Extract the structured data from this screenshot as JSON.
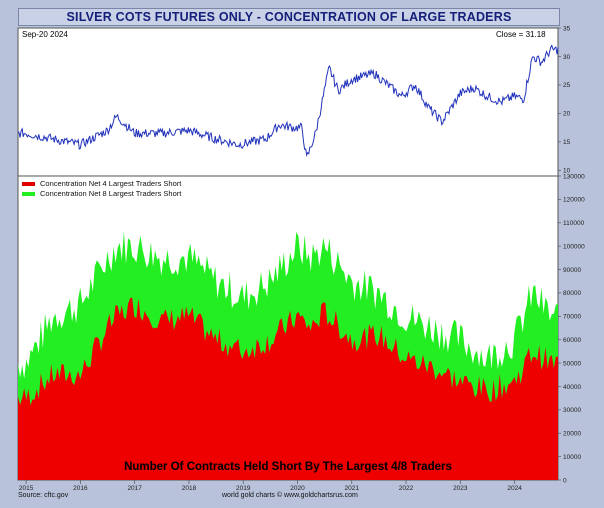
{
  "title": "SILVER COTS FUTURES ONLY - CONCENTRATION OF LARGE TRADERS",
  "date_label": "Sep-20  2024",
  "close_label": "Close = 31.18",
  "subtitle": "Number Of Contracts Held Short By The Largest 4/8 Traders",
  "source": "Source: cftc.gov",
  "credit": "world gold charts © www.goldchartsrus.com",
  "legend": [
    {
      "label": "Concentration Net 4 Largest Traders Short",
      "color": "#e00000"
    },
    {
      "label": "Concentration Net 8 Largest Traders Short",
      "color": "#22ee22"
    }
  ],
  "colors": {
    "price_line": "#2233bb",
    "net4": "#ee0000",
    "net8": "#22ee22"
  },
  "chart_data": [
    {
      "type": "line",
      "name": "price",
      "ylim": [
        9,
        35
      ],
      "yticks": [
        10,
        15,
        20,
        25,
        30,
        35
      ],
      "x": [
        "2015-01",
        "2015-07",
        "2016-01",
        "2016-07",
        "2016-09",
        "2017-01",
        "2017-07",
        "2018-01",
        "2018-07",
        "2018-12",
        "2019-06",
        "2019-09",
        "2019-12",
        "2020-02",
        "2020-03",
        "2020-05",
        "2020-08",
        "2020-10",
        "2021-01",
        "2021-06",
        "2021-12",
        "2022-03",
        "2022-06",
        "2022-09",
        "2023-01",
        "2023-04",
        "2023-07",
        "2023-10",
        "2024-01",
        "2024-03",
        "2024-05",
        "2024-07",
        "2024-09"
      ],
      "values": [
        16.5,
        15.5,
        14.5,
        17,
        19.5,
        16.5,
        16.5,
        17,
        15.5,
        14.5,
        15.5,
        18,
        17.5,
        17.5,
        12,
        16.5,
        28,
        24,
        26,
        27,
        23,
        25,
        21,
        18.5,
        23.5,
        24.5,
        23,
        22,
        23,
        22.5,
        30,
        29,
        31.18
      ]
    },
    {
      "type": "area",
      "ylim": [
        0,
        130000
      ],
      "yticks": [
        0,
        10000,
        20000,
        30000,
        40000,
        50000,
        60000,
        70000,
        80000,
        90000,
        100000,
        110000,
        120000,
        130000
      ],
      "xticks": [
        "2015",
        "2016",
        "2017",
        "2018",
        "2019",
        "2020",
        "2021",
        "2022",
        "2023",
        "2024"
      ],
      "x": [
        "2015-01",
        "2015-07",
        "2016-01",
        "2016-07",
        "2016-09",
        "2017-01",
        "2017-07",
        "2018-01",
        "2018-07",
        "2019-01",
        "2019-07",
        "2020-01",
        "2020-04",
        "2020-07",
        "2021-01",
        "2021-07",
        "2022-01",
        "2022-07",
        "2023-01",
        "2023-07",
        "2024-01",
        "2024-05",
        "2024-09"
      ],
      "series": [
        {
          "name": "Concentration Net 4 Largest Traders Short",
          "values": [
            35000,
            45000,
            45000,
            65000,
            70000,
            75000,
            68000,
            70000,
            60000,
            55000,
            60000,
            70000,
            65000,
            72000,
            60000,
            62000,
            52000,
            48000,
            42000,
            38000,
            42000,
            55000,
            50000
          ]
        },
        {
          "name": "Concentration Net 8 Largest Traders Short",
          "values": [
            50000,
            70000,
            75000,
            95000,
            100000,
            100000,
            95000,
            95000,
            85000,
            78000,
            85000,
            100000,
            95000,
            100000,
            85000,
            80000,
            70000,
            65000,
            60000,
            52000,
            60000,
            80000,
            70000
          ]
        }
      ]
    }
  ]
}
